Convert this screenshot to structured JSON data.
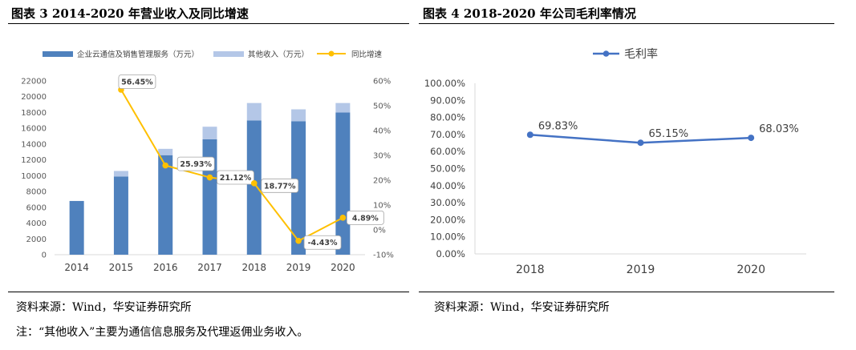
{
  "figure1": {
    "title": "图表 3 2014-2020 年营业收入及同比增速",
    "source": "资料来源：Wind，华安证券研究所",
    "note": "注：“其他收入”主要为通信信息服务及代理返佣业务收入。"
  },
  "figure2": {
    "title": "图表 4 2018-2020 年公司毛利率情况",
    "source": "资料来源：Wind，华安证券研究所"
  },
  "chart_data": [
    {
      "type": "bar",
      "stacked": true,
      "title": "",
      "categories": [
        "2014",
        "2015",
        "2016",
        "2017",
        "2018",
        "2019",
        "2020"
      ],
      "series": [
        {
          "name": "企业云通信及销售管理服务（万元）",
          "type": "bar",
          "axis": "left",
          "color": "#4F81BD",
          "values": [
            6800,
            9900,
            12600,
            14600,
            17000,
            16900,
            18000
          ]
        },
        {
          "name": "其他收入（万元）",
          "type": "bar",
          "axis": "left",
          "color": "#B4C7E7",
          "values": [
            0,
            700,
            800,
            1600,
            2200,
            1500,
            1200
          ]
        },
        {
          "name": "同比增速",
          "type": "line",
          "axis": "right",
          "color": "#FFC000",
          "values": [
            null,
            56.45,
            25.93,
            21.12,
            18.77,
            -4.43,
            4.89
          ],
          "labels": [
            "",
            "56.45%",
            "25.93%",
            "21.12%",
            "18.77%",
            "-4.43%",
            "4.89%"
          ]
        }
      ],
      "yticks_left": [
        "0",
        "2000",
        "4000",
        "6000",
        "8000",
        "10000",
        "12000",
        "14000",
        "16000",
        "18000",
        "20000",
        "22000"
      ],
      "yticks_right": [
        "-10%",
        "0%",
        "10%",
        "20%",
        "30%",
        "40%",
        "50%",
        "60%"
      ],
      "ylim_left": [
        0,
        22000
      ],
      "ylim_right": [
        -10,
        60
      ],
      "legend": "top",
      "grid": false
    },
    {
      "type": "line",
      "title": "",
      "categories": [
        "2018",
        "2019",
        "2020"
      ],
      "series": [
        {
          "name": "毛利率",
          "color": "#4472C4",
          "values": [
            69.83,
            65.15,
            68.03
          ],
          "labels": [
            "69.83%",
            "65.15%",
            "68.03%"
          ]
        }
      ],
      "yticks": [
        "0.00%",
        "10.00%",
        "20.00%",
        "30.00%",
        "40.00%",
        "50.00%",
        "60.00%",
        "70.00%",
        "80.00%",
        "90.00%",
        "100.00%"
      ],
      "ylim": [
        0,
        100
      ],
      "legend": "top",
      "grid": false
    }
  ]
}
